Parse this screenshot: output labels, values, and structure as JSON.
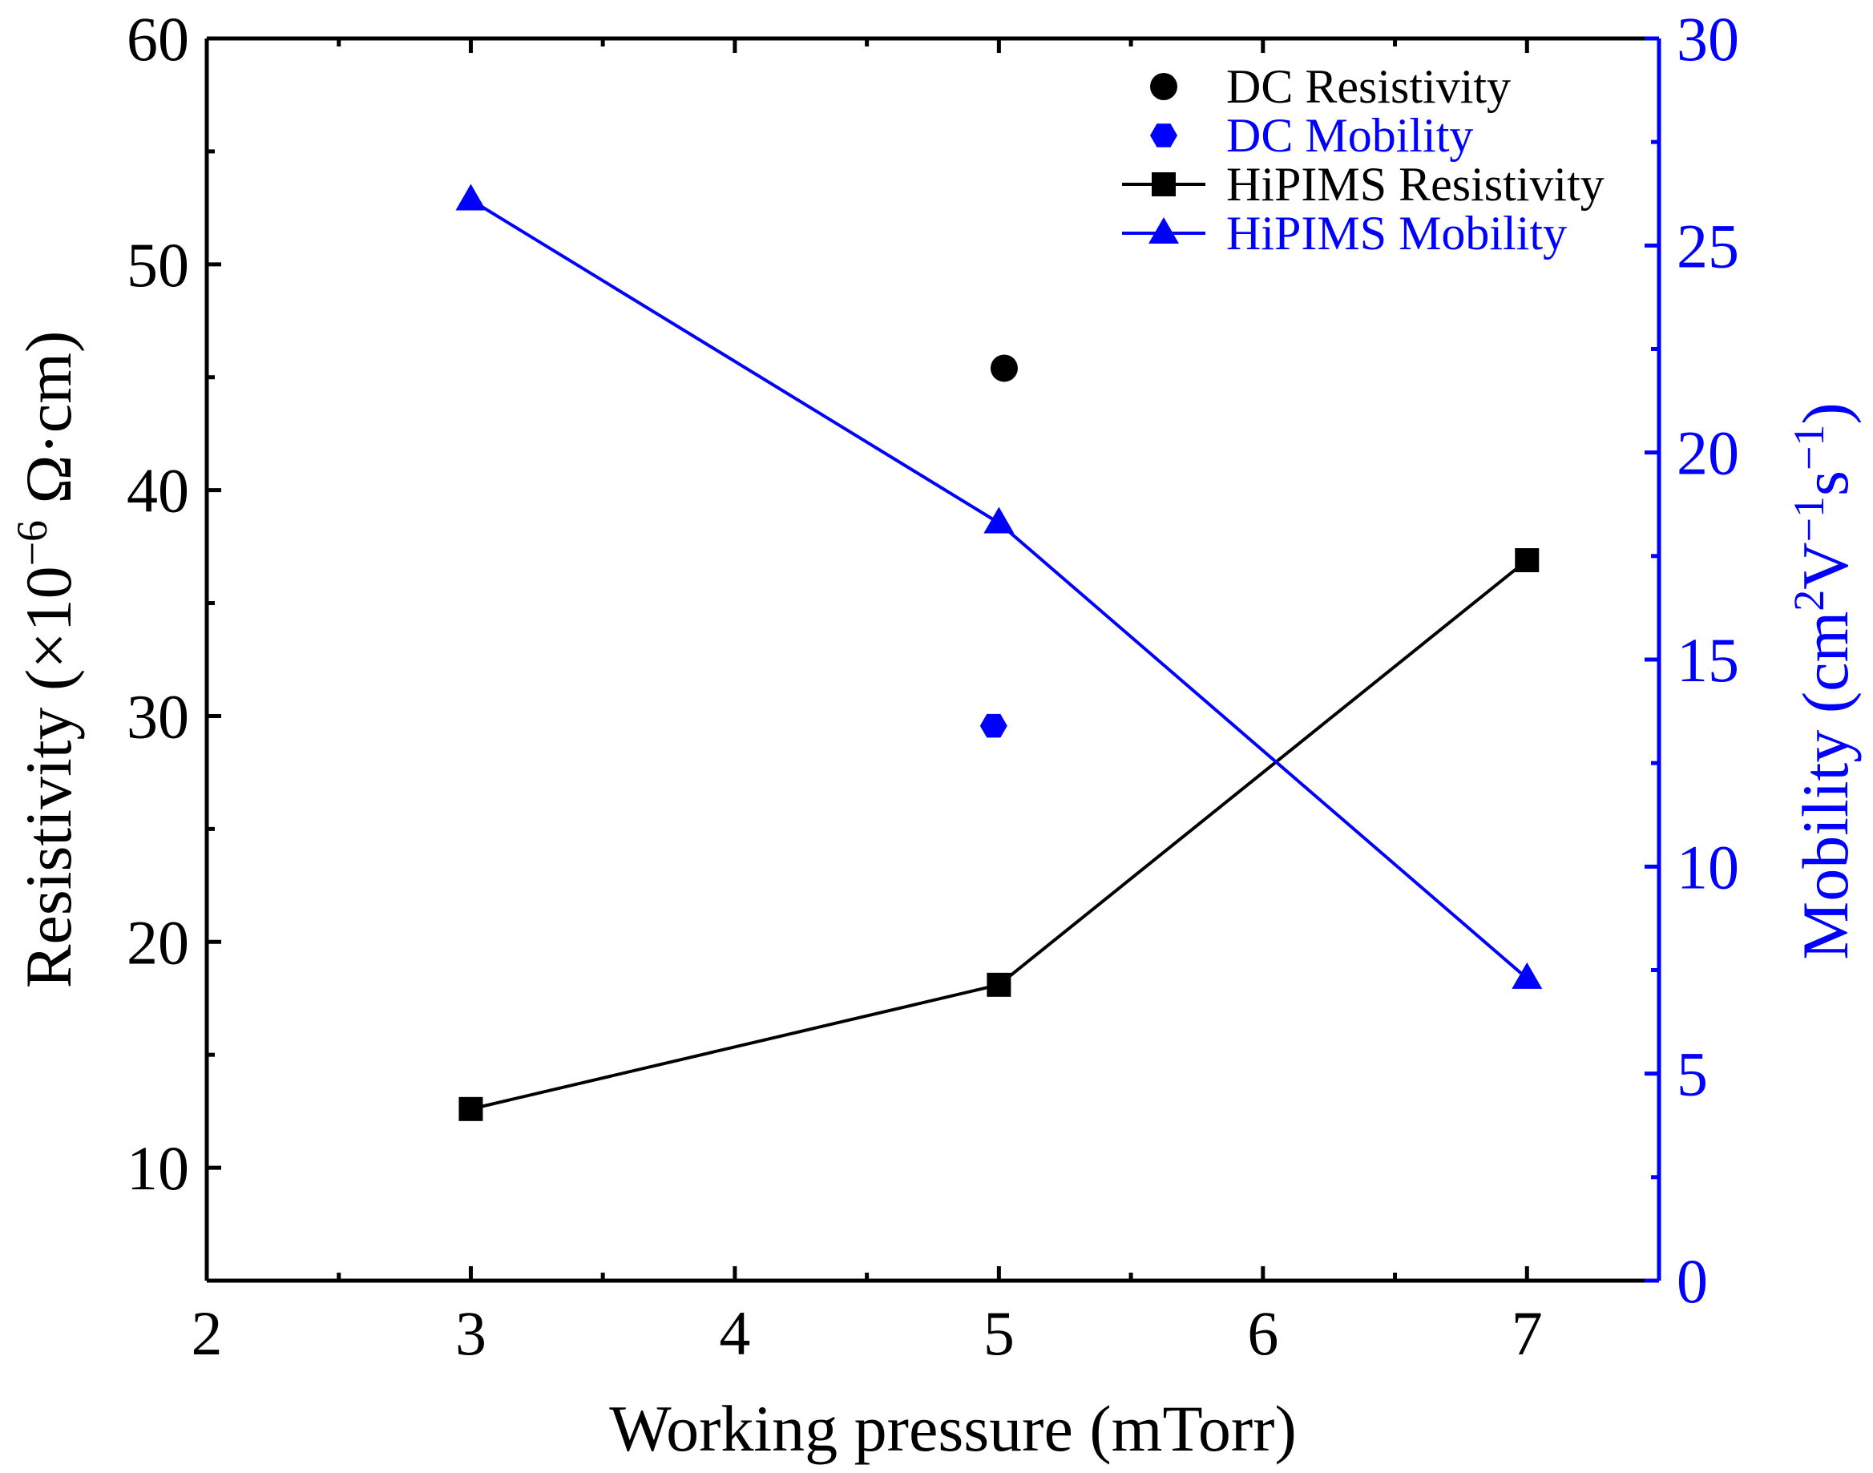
{
  "chart_data": {
    "type": "line",
    "title": "",
    "xlabel": "Working pressure (mTorr)",
    "ylabel_left": "Resistivity (×10⁻⁶ Ω·cm)",
    "ylabel_left_parts": {
      "pre": "Resistivity (×10",
      "sup": "−",
      "sup2": "6",
      "post": " Ω·cm)"
    },
    "ylabel_right": "Mobility (cm²V⁻¹s⁻¹)",
    "ylabel_right_parts": {
      "a": "Mobility (cm",
      "s1": "2",
      "b": "V",
      "s2": "−1",
      "c": "s",
      "s3": "−1",
      "d": ")"
    },
    "xlim": [
      2,
      7.5
    ],
    "ylim_left": [
      5,
      60
    ],
    "ylim_right": [
      0,
      30
    ],
    "x_ticks": [
      2,
      3,
      4,
      5,
      6,
      7
    ],
    "x_tick_labels": [
      "2",
      "3",
      "4",
      "5",
      "6",
      "7"
    ],
    "y_left_ticks": [
      10,
      20,
      30,
      40,
      50,
      60
    ],
    "y_left_tick_labels": [
      "10",
      "20",
      "30",
      "40",
      "50",
      "60"
    ],
    "y_right_ticks": [
      0,
      5,
      10,
      15,
      20,
      25,
      30
    ],
    "y_right_tick_labels": [
      "0",
      "5",
      "10",
      "15",
      "20",
      "25",
      "30"
    ],
    "colors": {
      "black": "#000000",
      "blue": "#0000ff"
    },
    "series": [
      {
        "name": "DC Resistivity",
        "axis": "left",
        "marker": "circle",
        "line": false,
        "color": "#000000",
        "x": [
          5.02
        ],
        "values": [
          45.4
        ]
      },
      {
        "name": "DC Mobility",
        "axis": "right",
        "marker": "hexagon",
        "line": false,
        "color": "#0000ff",
        "x": [
          4.98
        ],
        "values": [
          13.4
        ]
      },
      {
        "name": "HiPIMS Resistivity",
        "axis": "left",
        "marker": "square",
        "line": true,
        "color": "#000000",
        "x": [
          3,
          5,
          7
        ],
        "values": [
          12.6,
          18.1,
          36.9
        ]
      },
      {
        "name": "HiPIMS Mobility",
        "axis": "right",
        "marker": "triangle",
        "line": true,
        "color": "#0000ff",
        "x": [
          3,
          5,
          7
        ],
        "values": [
          26.1,
          18.3,
          7.3
        ]
      }
    ],
    "legend": {
      "placement": "top-right",
      "entries": [
        "DC Resistivity",
        "DC Mobility",
        "HiPIMS Resistivity",
        "HiPIMS Mobility"
      ]
    }
  }
}
